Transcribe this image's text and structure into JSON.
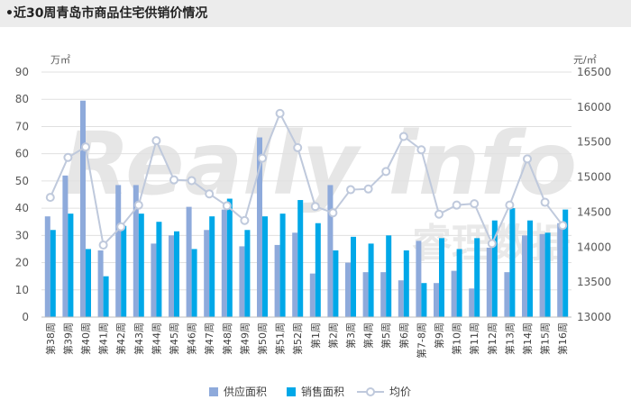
{
  "header": {
    "title": "•近30周青岛市商品住宅供销价情况"
  },
  "chart_data": {
    "type": "bar",
    "title": "•近30周青岛市商品住宅供销价情况",
    "y_left_unit": "万㎡",
    "y_right_unit": "元/㎡",
    "ylim_left": [
      0,
      90
    ],
    "yticks_left": [
      0,
      10,
      20,
      30,
      40,
      50,
      60,
      70,
      80,
      90
    ],
    "ylim_right": [
      13000,
      16500
    ],
    "yticks_right": [
      13000,
      13500,
      14000,
      14500,
      15000,
      15500,
      16000,
      16500
    ],
    "categories": [
      "第38周",
      "第39周",
      "第40周",
      "第41周",
      "第42周",
      "第43周",
      "第44周",
      "第45周",
      "第46周",
      "第47周",
      "第48周",
      "第49周",
      "第50周",
      "第51周",
      "第52周",
      "第1周",
      "第2周",
      "第3周",
      "第4周",
      "第5周",
      "第6周",
      "第7-8周",
      "第9周",
      "第10周",
      "第11周",
      "第12周",
      "第13周",
      "第14周",
      "第15周",
      "第16周"
    ],
    "series": [
      {
        "name": "供应面积",
        "kind": "bar",
        "axis": "left",
        "color": "#8eaadb",
        "values": [
          37,
          52,
          79.5,
          24.5,
          48.5,
          48.5,
          27,
          30,
          40.5,
          32,
          39.5,
          26,
          66,
          26.5,
          31,
          16,
          48.5,
          20,
          16.5,
          16.5,
          13.5,
          28,
          12.5,
          17,
          10.5,
          25.5,
          16.5,
          30,
          30.5,
          34.5
        ]
      },
      {
        "name": "销售面积",
        "kind": "bar",
        "axis": "left",
        "color": "#00a8e8",
        "values": [
          32,
          38,
          25,
          15,
          33.5,
          38,
          35,
          31.5,
          25,
          37,
          43.5,
          32,
          37,
          38,
          43,
          34.5,
          24.5,
          29.5,
          27,
          30,
          24.5,
          12.5,
          29,
          25,
          29,
          35.5,
          40,
          35.5,
          31,
          39.5
        ]
      },
      {
        "name": "均价",
        "kind": "line",
        "axis": "right",
        "color": "#bfc9dc",
        "values": [
          14710,
          15280,
          15430,
          14030,
          14290,
          14600,
          15520,
          14960,
          14950,
          14760,
          14590,
          14380,
          15270,
          15910,
          15420,
          14580,
          14490,
          14820,
          14830,
          15080,
          15580,
          15390,
          14470,
          14600,
          14620,
          14050,
          14600,
          15260,
          14640,
          14310
        ]
      }
    ],
    "legend": [
      "供应面积",
      "销售面积",
      "均价"
    ],
    "legend_position": "bottom",
    "watermark_text": "Really info 睿理数据"
  }
}
